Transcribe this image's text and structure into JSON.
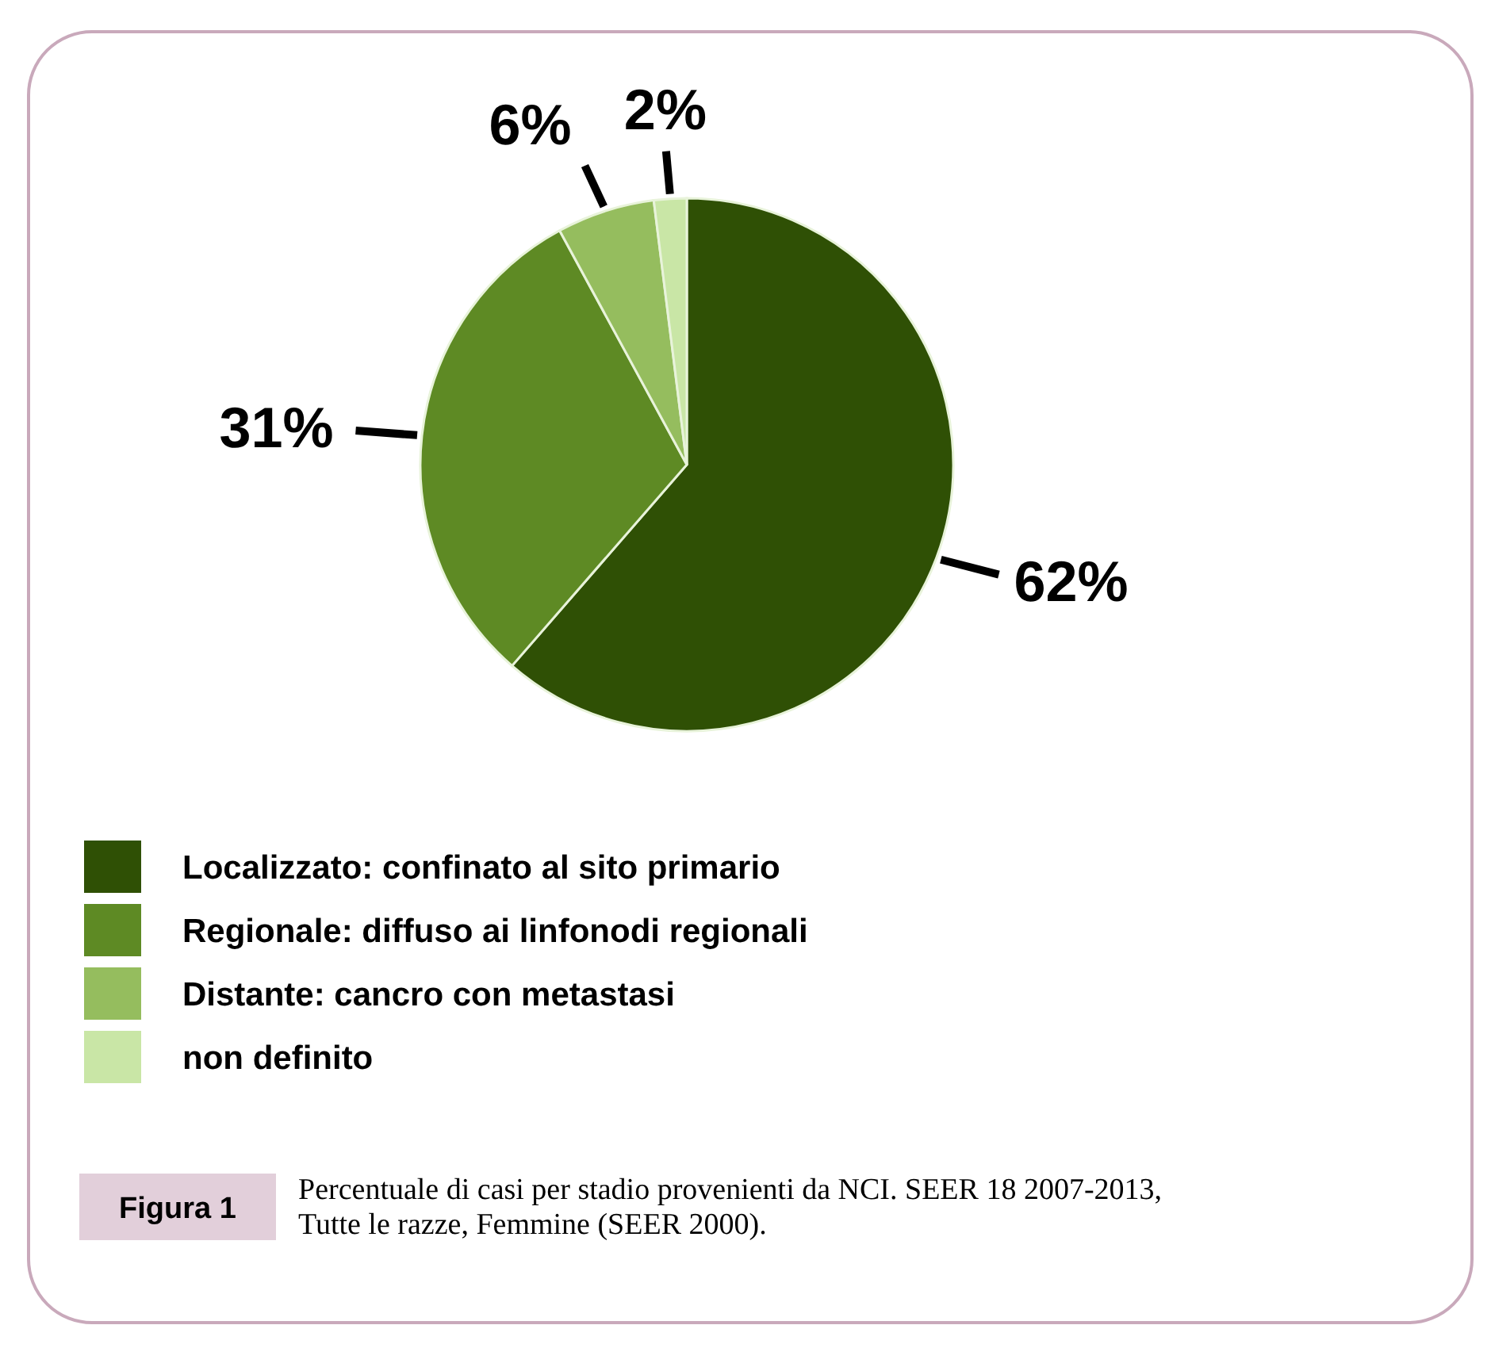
{
  "chart_data": {
    "type": "pie",
    "categories": [
      "Localizzato: confinato al sito primario",
      "Regionale: diffuso ai linfonodi regionali",
      "Distante: cancro con metastasi",
      "non definito"
    ],
    "values": [
      62,
      31,
      6,
      2
    ],
    "colors": [
      "#2f5005",
      "#5e8a24",
      "#95bd5e",
      "#c9e6a6"
    ],
    "value_labels": [
      "62%",
      "31%",
      "6%",
      "2%"
    ],
    "legend": "bottom left",
    "annotations": [
      "Figura 1",
      "Percentuale di casi per stadio provenienti da NCI. SEER 18 2007-2013, Tutte le razze, Femmine (SEER 2000)."
    ]
  }
}
